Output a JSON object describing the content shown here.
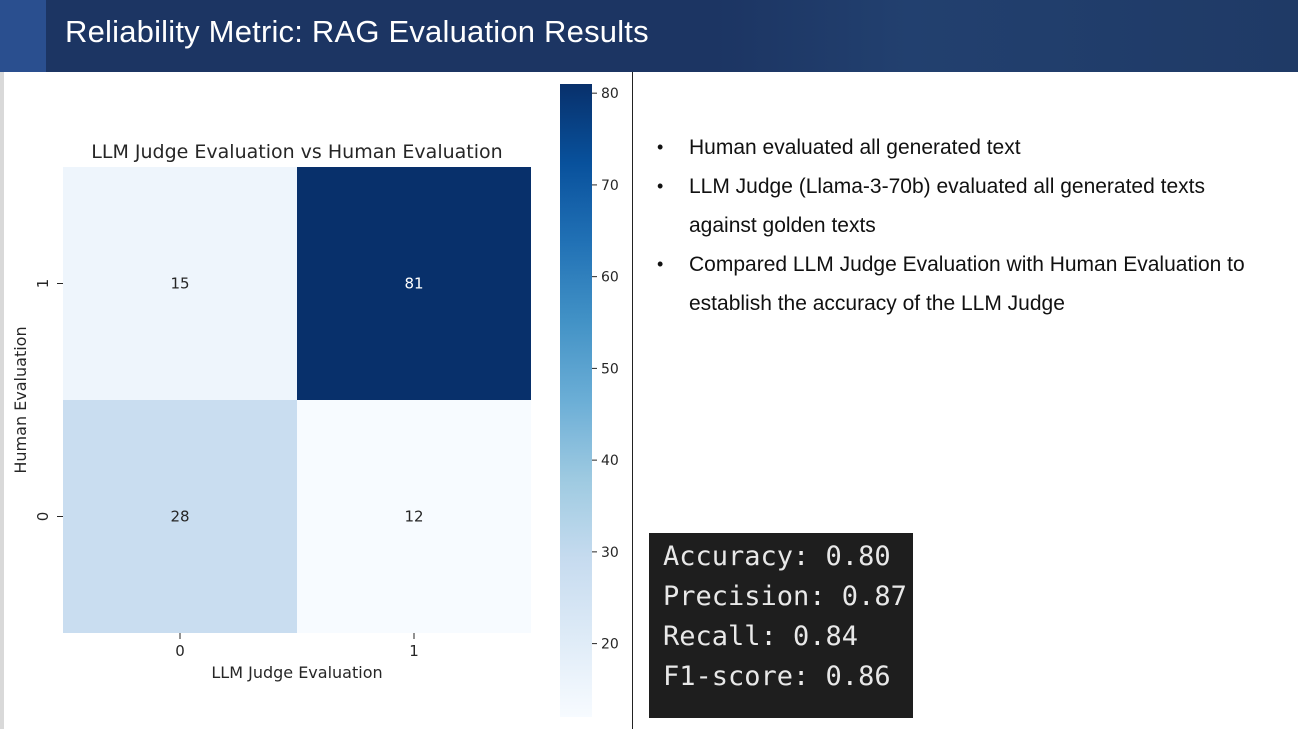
{
  "header": {
    "title": "Reliability Metric: RAG Evaluation Results"
  },
  "chart_data": {
    "type": "heatmap",
    "title": "LLM Judge Evaluation vs Human Evaluation",
    "xlabel": "LLM Judge Evaluation",
    "ylabel": "Human Evaluation",
    "x_categories": [
      "0",
      "1"
    ],
    "y_categories": [
      "1",
      "0"
    ],
    "values": [
      [
        15,
        81
      ],
      [
        28,
        12
      ]
    ],
    "colormap": "Blues",
    "colorbar": {
      "min": 12,
      "max": 81,
      "ticks": [
        20,
        30,
        40,
        50,
        60,
        70,
        80
      ]
    },
    "colors": {
      "low": "#f7fbff",
      "high": "#08306b"
    }
  },
  "bullets": [
    " Human evaluated all generated text",
    "LLM Judge (Llama-3-70b) evaluated all generated texts against golden texts",
    "Compared LLM Judge Evaluation with Human Evaluation to establish the accuracy of the LLM Judge"
  ],
  "metrics": [
    "Accuracy: 0.80",
    "Precision: 0.87",
    "Recall: 0.84",
    "F1-score: 0.86"
  ]
}
